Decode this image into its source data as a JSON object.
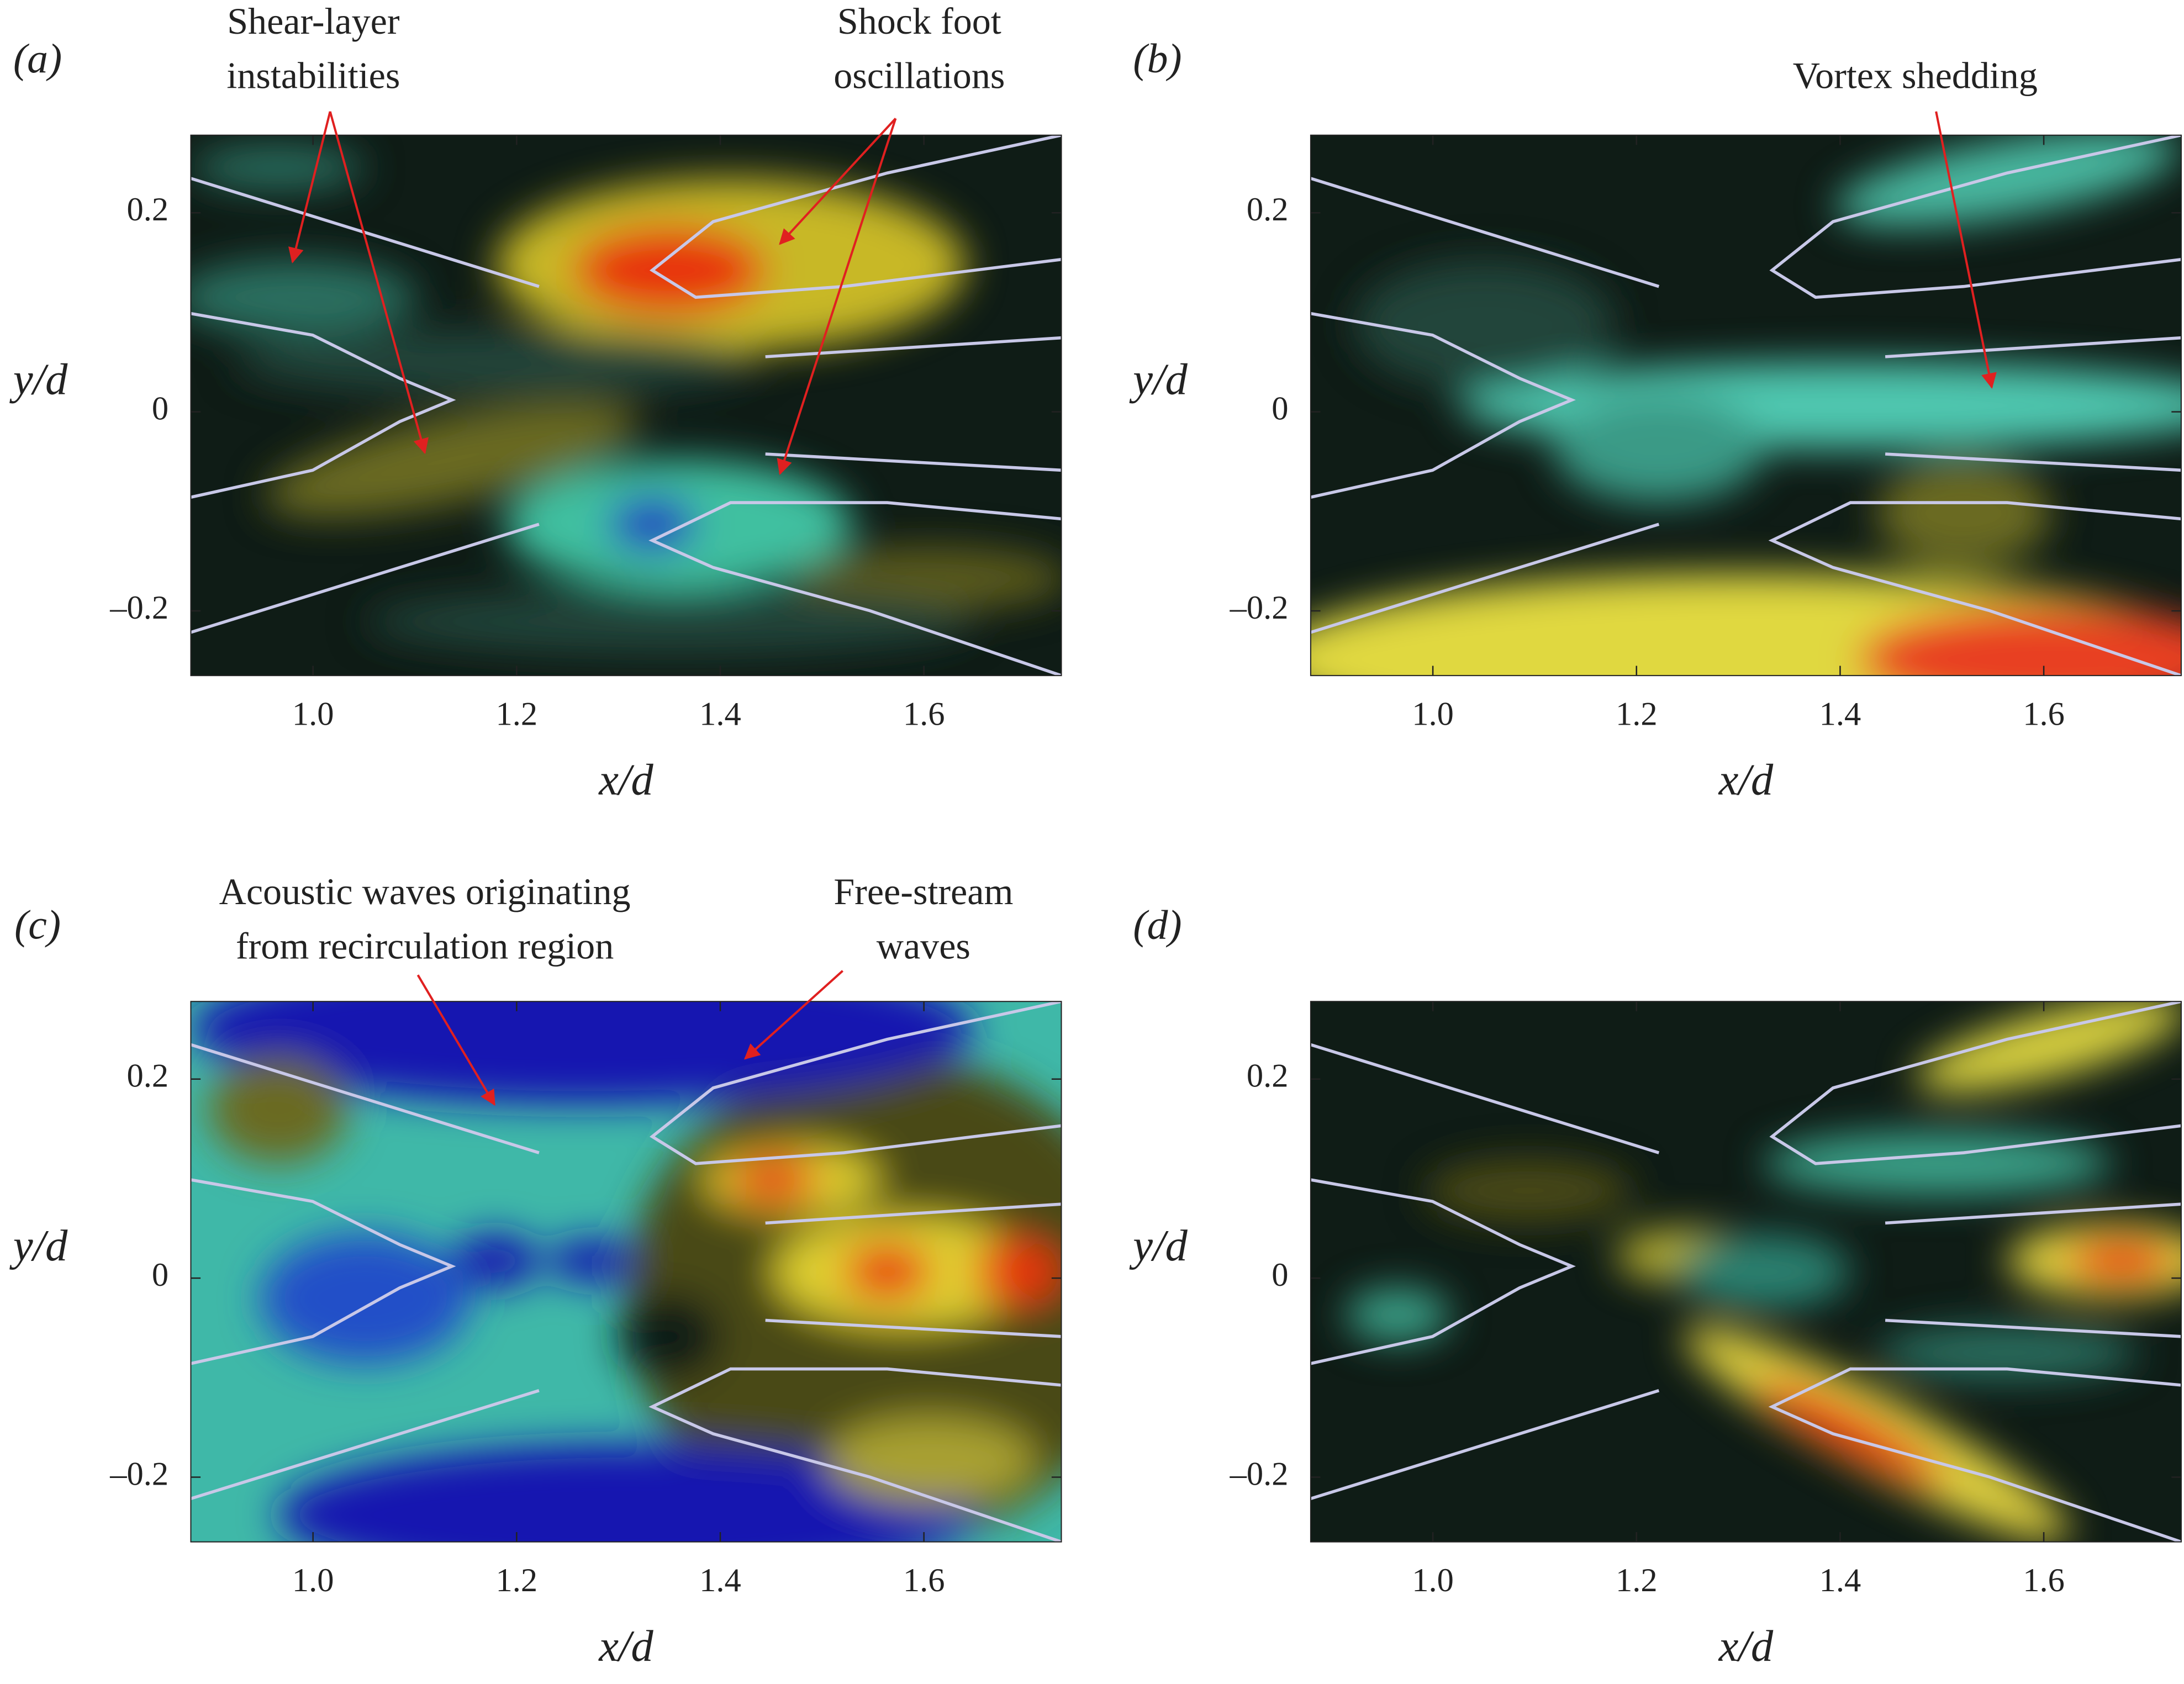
{
  "chart_data": [
    {
      "type": "contour",
      "panel_label": "(a)",
      "xlabel": "x/d",
      "ylabel": "y/d",
      "xlim": [
        0.88,
        1.735
      ],
      "ylim": [
        -0.265,
        0.278
      ],
      "xticks": [
        {
          "value": 1.0,
          "label": "1.0"
        },
        1.2,
        1.4,
        1.6
      ],
      "yticks": [
        {
          "value": -0.2,
          "label": "–0.2"
        },
        0,
        0.2
      ],
      "annotations": [
        {
          "text": [
            "Shear-layer",
            "instabilities"
          ]
        },
        {
          "text": [
            "Shock foot",
            "oscillations"
          ]
        }
      ]
    },
    {
      "type": "contour",
      "panel_label": "(b)",
      "xlabel": "x/d",
      "ylabel": "y/d",
      "xlim": [
        0.88,
        1.735
      ],
      "ylim": [
        -0.265,
        0.278
      ],
      "xticks": [
        {
          "value": 1.0,
          "label": "1.0"
        },
        1.2,
        1.4,
        1.6
      ],
      "yticks": [
        {
          "value": -0.2,
          "label": "–0.2"
        },
        0,
        0.2
      ],
      "annotations": [
        {
          "text": [
            "Vortex shedding"
          ]
        }
      ]
    },
    {
      "type": "contour",
      "panel_label": "(c)",
      "xlabel": "x/d",
      "ylabel": "y/d",
      "xlim": [
        0.88,
        1.735
      ],
      "ylim": [
        -0.265,
        0.278
      ],
      "xticks": [
        {
          "value": 1.0,
          "label": "1.0"
        },
        1.2,
        1.4,
        1.6
      ],
      "yticks": [
        {
          "value": -0.2,
          "label": "–0.2"
        },
        0,
        0.2
      ],
      "annotations": [
        {
          "text": [
            "Acoustic waves originating",
            "from recirculation region"
          ]
        },
        {
          "text": [
            "Free-stream",
            "waves"
          ]
        }
      ]
    },
    {
      "type": "contour",
      "panel_label": "(d)",
      "xlabel": "x/d",
      "ylabel": "y/d",
      "xlim": [
        0.88,
        1.735
      ],
      "ylim": [
        -0.265,
        0.278
      ],
      "xticks": [
        {
          "value": 1.0,
          "label": "1.0"
        },
        1.2,
        1.4,
        1.6
      ],
      "yticks": [
        {
          "value": -0.2,
          "label": "–0.2"
        },
        0,
        0.2
      ],
      "annotations": []
    }
  ]
}
